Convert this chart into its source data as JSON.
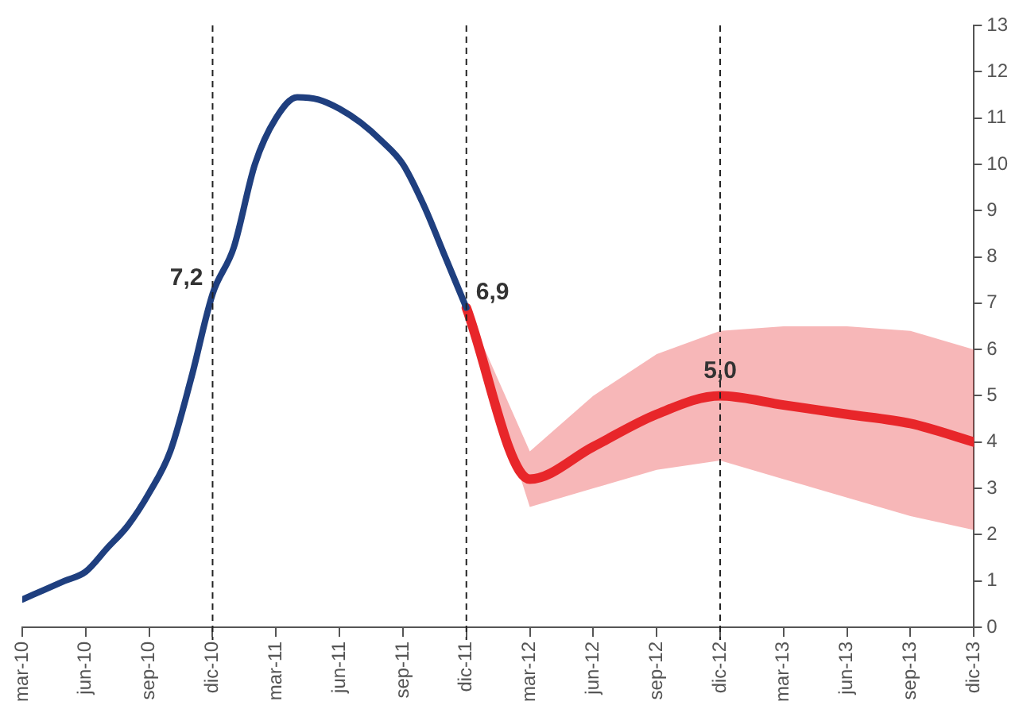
{
  "chart_data": {
    "type": "line",
    "legend": false,
    "grid": false,
    "marker": "none",
    "xlim": [
      "2010-03",
      "2013-12"
    ],
    "xticks": [
      {
        "value": "2010-03",
        "label": "mar-10"
      },
      {
        "value": "2010-06",
        "label": "jun-10"
      },
      {
        "value": "2010-09",
        "label": "sep-10"
      },
      {
        "value": "2010-12",
        "label": "dic-10"
      },
      {
        "value": "2011-03",
        "label": "mar-11"
      },
      {
        "value": "2011-06",
        "label": "jun-11"
      },
      {
        "value": "2011-09",
        "label": "sep-11"
      },
      {
        "value": "2011-12",
        "label": "dic-11"
      },
      {
        "value": "2012-03",
        "label": "mar-12"
      },
      {
        "value": "2012-06",
        "label": "jun-12"
      },
      {
        "value": "2012-09",
        "label": "sep-12"
      },
      {
        "value": "2012-12",
        "label": "dic-12"
      },
      {
        "value": "2013-03",
        "label": "mar-13"
      },
      {
        "value": "2013-06",
        "label": "jun-13"
      },
      {
        "value": "2013-09",
        "label": "sep-13"
      },
      {
        "value": "2013-12",
        "label": "dic-13"
      }
    ],
    "ylim": [
      0,
      13
    ],
    "yticks": [
      0,
      1,
      2,
      3,
      4,
      5,
      6,
      7,
      8,
      9,
      10,
      11,
      12,
      13
    ],
    "series": [
      {
        "color": "#1f3f7f",
        "x": [
          "2010-03",
          "2010-04",
          "2010-05",
          "2010-06",
          "2010-07",
          "2010-08",
          "2010-09",
          "2010-10",
          "2010-11",
          "2010-12",
          "2011-01",
          "2011-02",
          "2011-03",
          "2011-04",
          "2011-05",
          "2011-06",
          "2011-07",
          "2011-08",
          "2011-09",
          "2011-10",
          "2011-11",
          "2011-12"
        ],
        "values": [
          0.6,
          0.8,
          1.0,
          1.2,
          1.7,
          2.2,
          2.9,
          3.8,
          5.4,
          7.2,
          8.2,
          10.0,
          11.0,
          11.45,
          11.4,
          11.2,
          10.9,
          10.5,
          10.0,
          9.1,
          8.0,
          6.9
        ]
      },
      {
        "color": "#e8262a",
        "x": [
          "2011-12",
          "2012-03",
          "2012-06",
          "2012-09",
          "2012-12",
          "2013-03",
          "2013-06",
          "2013-09",
          "2013-12"
        ],
        "values": [
          6.9,
          3.2,
          3.9,
          4.6,
          5.0,
          4.8,
          4.6,
          4.4,
          4.0
        ],
        "lower": [
          6.9,
          2.6,
          3.0,
          3.4,
          3.6,
          3.2,
          2.8,
          2.4,
          2.1
        ],
        "upper": [
          6.9,
          3.8,
          5.0,
          5.9,
          6.4,
          6.5,
          6.5,
          6.4,
          6.0
        ]
      }
    ],
    "ref_lines": [
      {
        "axis": "x",
        "value": "2010-12",
        "line_style": "dashed",
        "color": "#222222"
      },
      {
        "axis": "x",
        "value": "2011-12",
        "line_style": "dashed",
        "color": "#222222"
      },
      {
        "axis": "x",
        "value": "2012-12",
        "line_style": "dashed",
        "color": "#222222"
      }
    ],
    "annotations": [
      {
        "text": "7,2",
        "x": "2010-12",
        "y": 7.2
      },
      {
        "text": "6,9",
        "x": "2011-12",
        "y": 6.9
      },
      {
        "text": "5,0",
        "x": "2012-12",
        "y": 5.0
      }
    ]
  }
}
